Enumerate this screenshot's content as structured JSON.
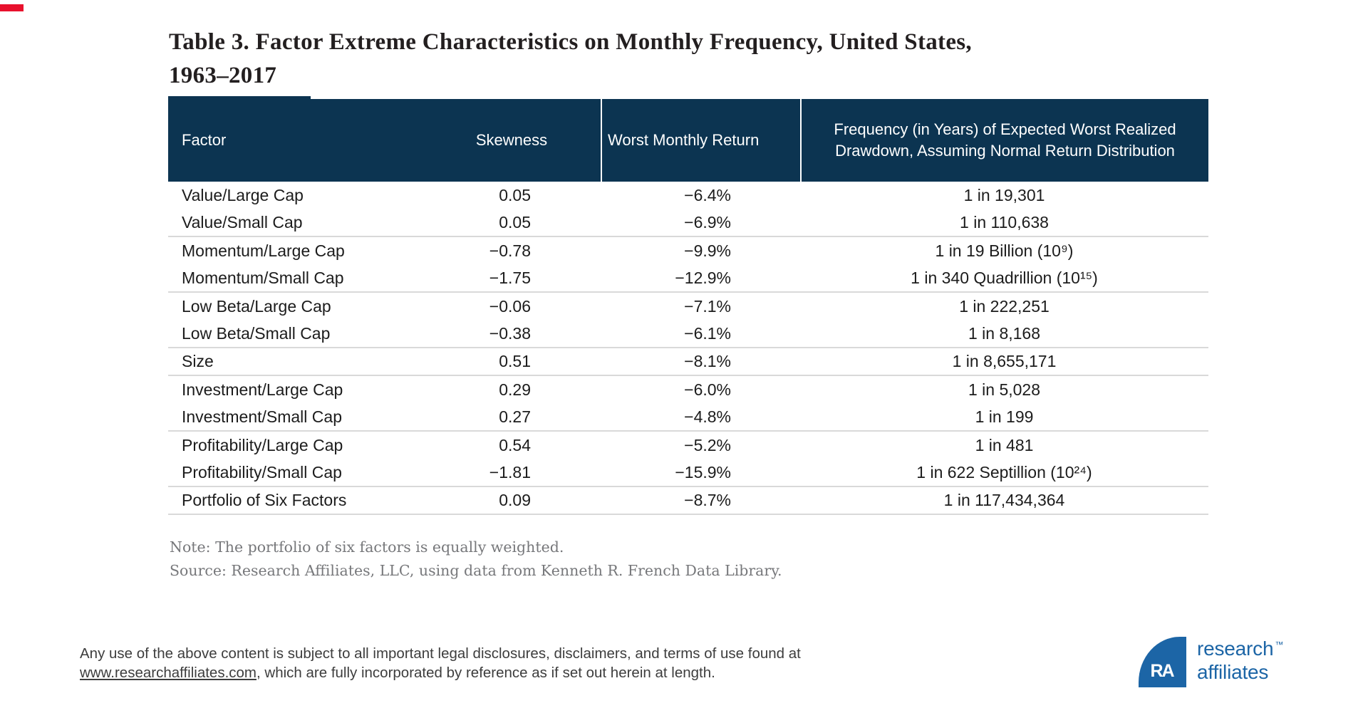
{
  "colors": {
    "header_navy": "#0c3451",
    "row_divider": "#d9d9d9",
    "text_dark": "#1c1c1c",
    "note_gray": "#77787b",
    "legal_gray": "#3d3d3d",
    "logo_blue": "#1c65a6",
    "red_bar": "#e8112d"
  },
  "title": {
    "line1": "Table 3. Factor Extreme Characteristics on Monthly Frequency, United States,",
    "line2": "1963–2017"
  },
  "table": {
    "header": {
      "factor": "Factor",
      "skewness": "Skewness",
      "worst": "Worst Monthly Return",
      "frequency": "Frequency (in Years) of Expected Worst Realized Drawdown, Assuming Normal Return Distribution"
    },
    "rows": [
      {
        "factor": "Value/Large Cap",
        "skewness": "0.05",
        "worst": "−6.4%",
        "frequency": "1 in 19,301",
        "divider_after": false
      },
      {
        "factor": "Value/Small Cap",
        "skewness": "0.05",
        "worst": "−6.9%",
        "frequency": "1 in 110,638",
        "divider_after": true
      },
      {
        "factor": "Momentum/Large Cap",
        "skewness": "−0.78",
        "worst": "−9.9%",
        "frequency": "1 in 19 Billion (10⁹)",
        "divider_after": false
      },
      {
        "factor": "Momentum/Small Cap",
        "skewness": "−1.75",
        "worst": "−12.9%",
        "frequency": "1 in 340 Quadrillion (10¹⁵)",
        "divider_after": true
      },
      {
        "factor": "Low Beta/Large Cap",
        "skewness": "−0.06",
        "worst": "−7.1%",
        "frequency": "1 in 222,251",
        "divider_after": false
      },
      {
        "factor": "Low Beta/Small Cap",
        "skewness": "−0.38",
        "worst": "−6.1%",
        "frequency": "1 in 8,168",
        "divider_after": true
      },
      {
        "factor": "Size",
        "skewness": "0.51",
        "worst": "−8.1%",
        "frequency": "1 in 8,655,171",
        "divider_after": true
      },
      {
        "factor": "Investment/Large Cap",
        "skewness": "0.29",
        "worst": "−6.0%",
        "frequency": "1 in 5,028",
        "divider_after": false
      },
      {
        "factor": "Investment/Small Cap",
        "skewness": "0.27",
        "worst": "−4.8%",
        "frequency": "1 in 199",
        "divider_after": true
      },
      {
        "factor": "Profitability/Large Cap",
        "skewness": "0.54",
        "worst": "−5.2%",
        "frequency": "1 in 481",
        "divider_after": false
      },
      {
        "factor": "Profitability/Small Cap",
        "skewness": "−1.81",
        "worst": "−15.9%",
        "frequency": "1 in 622 Septillion (10²⁴)",
        "divider_after": true
      },
      {
        "factor": "Portfolio of Six Factors",
        "skewness": "0.09",
        "worst": "−8.7%",
        "frequency": "1 in 117,434,364",
        "divider_after": true
      }
    ]
  },
  "notes": {
    "note": "Note: The portfolio of six factors is equally weighted.",
    "source": "Source: Research Affiliates, LLC, using data from Kenneth R. French Data Library."
  },
  "footer": {
    "line1": "Any use of the above content is subject to all important legal disclosures, disclaimers, and terms of use found at",
    "link": "www.researchaffiliates.com",
    "line2_rest": ", which are fully incorporated by reference as if set out herein at length."
  },
  "logo": {
    "monogram": "RA",
    "line1": "research",
    "tm": "™",
    "line2": "affiliates"
  }
}
